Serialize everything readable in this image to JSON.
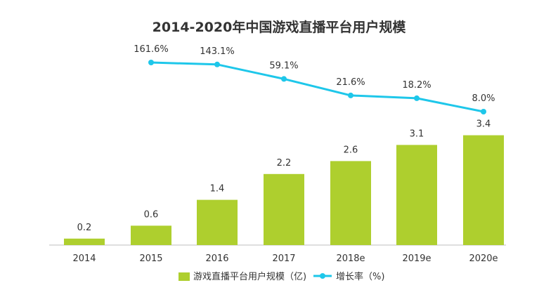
{
  "chart_data": {
    "type": "bar",
    "title": "2014-2020年中国游戏直播平台用户规模",
    "categories": [
      "2014",
      "2015",
      "2016",
      "2017",
      "2018e",
      "2019e",
      "2020e"
    ],
    "series": [
      {
        "name": "游戏直播平台用户规模（亿)",
        "kind": "bar",
        "values": [
          0.2,
          0.6,
          1.4,
          2.2,
          2.6,
          3.1,
          3.4
        ],
        "labels": [
          "0.2",
          "0.6",
          "1.4",
          "2.2",
          "2.6",
          "3.1",
          "3.4"
        ],
        "color": "#aecf2e"
      },
      {
        "name": "增长率（%)",
        "kind": "line",
        "values": [
          null,
          161.6,
          143.1,
          59.1,
          21.6,
          18.2,
          8.0
        ],
        "labels": [
          "",
          "161.6%",
          "143.1%",
          "59.1%",
          "21.6%",
          "18.2%",
          "8.0%"
        ],
        "color": "#1ec7ea"
      }
    ],
    "xlabel": "",
    "ylabel": "",
    "ylim": [
      0,
      3.8
    ],
    "grid": false,
    "legend": "bottom"
  }
}
